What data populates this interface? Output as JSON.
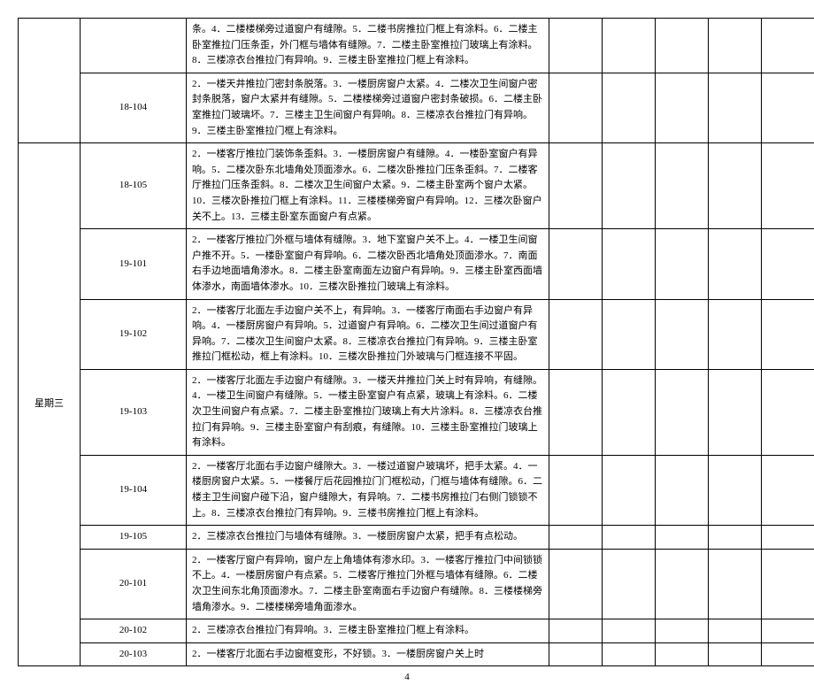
{
  "page_number": "4",
  "day_label": "星期三",
  "rows": [
    {
      "room": "",
      "desc": "条。4．二楼楼梯旁过道窗户有缝隙。5．二楼书房推拉门框上有涂料。6．二楼主卧室推拉门压条歪，外门框与墙体有缝隙。7．二楼主卧室推拉门玻璃上有涂料。8．三楼凉衣台推拉门有异响。9．三楼主卧室推拉门框上有涂料。"
    },
    {
      "room": "18-104",
      "desc": "2．一楼天井推拉门密封条脱落。3．一楼厨房窗户太紧。4．二楼次卫生间窗户密封条脱落，窗户太紧并有缝隙。5．二楼楼梯旁过道窗户密封条破损。6．二楼主卧室推拉门玻璃坏。7．三楼主卫生间窗户有异响。8．三楼凉衣台推拉门有异响。9．三楼主卧室推拉门框上有涂料。"
    },
    {
      "room": "18-105",
      "desc": "2．一楼客厅推拉门装饰条歪斜。3．一楼厨房窗户有缝隙。4．一楼卧室窗户有异响。5．二楼次卧东北墙角处顶面渗水。6．二楼次卧推拉门压条歪斜。7．二楼客厅推拉门压条歪斜。8．二楼次卫生间窗户太紧。9．二楼主卧室两个窗户太紧。10．三楼次卧推拉门框上有涂料。11．三楼楼梯旁窗户有异响。12．三楼次卧窗户关不上。13．三楼主卧室东面窗户有点紧。"
    },
    {
      "room": "19-101",
      "desc": "2．一楼客厅推拉门外框与墙体有缝隙。3．地下室窗户关不上。4．一楼卫生间窗户推不开。5．一楼卧室窗户有异响。6．二楼次卧西北墙角处顶面渗水。7．南面右手边地面墙角渗水。8．二楼主卧室南面左边窗户有异响。9．三楼主卧室西面墙体渗水，南面墙体渗水。10．三楼次卧推拉门玻璃上有涂料。"
    },
    {
      "room": "19-102",
      "desc": "2．一楼客厅北面左手边窗户关不上，有异响。3．一楼客厅南面右手边窗户有异响。4．一楼厨房窗户有异响。5．过道窗户有异响。6．二楼次卫生间过道窗户有异响。7．二楼次卫生间窗户太紧。8．三楼凉衣台推拉门有异响。9．三楼主卧室推拉门框松动，框上有涂料。10．三楼次卧推拉门外玻璃与门框连接不平固。"
    },
    {
      "room": "19-103",
      "desc": "2．一楼客厅北面左手边窗户有缝隙。3．一楼天井推拉门关上时有异响，有缝隙。4．一楼卫生间窗户有缝隙。5．一楼主卧室窗户有点紧，玻璃上有涂料。6．二楼次卫生间窗户有点紧。7．二楼主卧室推拉门玻璃上有大片涂料。8．三楼凉衣台推拉门有异响。9．三楼主卧室窗户有刮痕，有缝隙。10．三楼主卧室推拉门玻璃上有涂料。"
    },
    {
      "room": "19-104",
      "desc": "2．一楼客厅北面右手边窗户缝隙大。3．一楼过道窗户玻璃坏，把手太紧。4．一楼厨房窗户太紧。5．一楼餐厅后花园推拉门门框松动，门框与墙体有缝隙。6．二楼主卫生间窗户碰下沿，窗户缝隙大，有异响。7．二楼书房推拉门右侧门锁锁不上。8．三楼凉衣台推拉门有异响。9．三楼书房推拉门框上有涂料。"
    },
    {
      "room": "19-105",
      "desc": "2．三楼凉衣台推拉门与墙体有缝隙。3．一楼厨房窗户太紧，把手有点松动。"
    },
    {
      "room": "20-101",
      "desc": "2．一楼客厅窗户有异响，窗户左上角墙体有渗水印。3．一楼客厅推拉门中间锁锁不上。4．一楼厨房窗户有点紧。5．二楼客厅推拉门外框与墙体有缝隙。6．二楼次卫生间东北角顶面渗水。7．二楼主卧室南面右手边窗户有缝隙。8．三楼楼梯旁墙角渗水。9．二楼楼梯旁墙角面渗水。"
    },
    {
      "room": "20-102",
      "desc": "2．三楼凉衣台推拉门有异响。3．三楼主卧室推拉门框上有涂料。"
    },
    {
      "room": "20-103",
      "desc": "2．一楼客厅北面右手边窗框变形，不好锁。3．一楼厨房窗户关上时"
    }
  ]
}
